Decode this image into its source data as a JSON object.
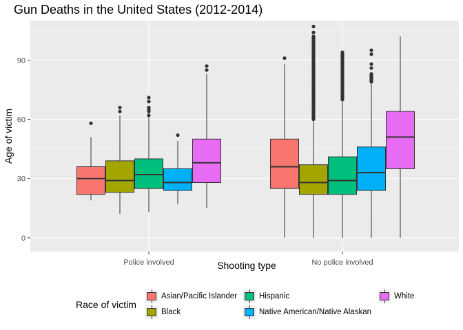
{
  "chart_data": {
    "type": "boxplot",
    "title": "Gun Deaths in the United States (2012-2014)",
    "xlabel": "Shooting type",
    "ylabel": "Age of victim",
    "ylim": [
      -7,
      110
    ],
    "yticks": [
      0,
      30,
      60,
      90
    ],
    "categories": [
      "Police involved",
      "No police involved"
    ],
    "legend": {
      "title": "Race of victim",
      "position": "bottom"
    },
    "series": [
      {
        "name": "Asian/Pacific Islander",
        "color": "#F8766D",
        "boxes": [
          {
            "category": "Police involved",
            "min": 19,
            "q1": 22,
            "median": 30,
            "q3": 36,
            "max": 51,
            "outliers": [
              58
            ]
          },
          {
            "category": "No police involved",
            "min": 0,
            "q1": 25,
            "median": 36,
            "q3": 50,
            "max": 88,
            "outliers": [
              91
            ]
          }
        ]
      },
      {
        "name": "Black",
        "color": "#A3A500",
        "boxes": [
          {
            "category": "Police involved",
            "min": 12,
            "q1": 23,
            "median": 29,
            "q3": 39,
            "max": 62,
            "outliers": [
              64,
              66
            ]
          },
          {
            "category": "No police involved",
            "min": 0,
            "q1": 22,
            "median": 28,
            "q3": 37,
            "max": 59,
            "outliers_range": [
              60,
              102
            ],
            "outliers": [
              104,
              107
            ]
          }
        ]
      },
      {
        "name": "Hispanic",
        "color": "#00BF7D",
        "boxes": [
          {
            "category": "Police involved",
            "min": 13,
            "q1": 25,
            "median": 32,
            "q3": 40,
            "max": 61,
            "outliers": [
              62,
              64,
              65,
              66,
              69,
              71
            ]
          },
          {
            "category": "No police involved",
            "min": 0,
            "q1": 22,
            "median": 29,
            "q3": 41,
            "max": 69,
            "outliers_range": [
              70,
              94
            ]
          }
        ]
      },
      {
        "name": "Native American/Native Alaskan",
        "color": "#00B0F6",
        "boxes": [
          {
            "category": "Police involved",
            "min": 17,
            "q1": 24,
            "median": 28,
            "q3": 35,
            "max": 49,
            "outliers": [
              52
            ]
          },
          {
            "category": "No police involved",
            "min": 0,
            "q1": 24,
            "median": 33,
            "q3": 46,
            "max": 78,
            "outliers_range": [
              79,
              83
            ],
            "outliers": [
              86,
              88,
              93,
              95
            ]
          }
        ]
      },
      {
        "name": "White",
        "color": "#E76BF3",
        "boxes": [
          {
            "category": "Police involved",
            "min": 15,
            "q1": 28,
            "median": 38,
            "q3": 50,
            "max": 83,
            "outliers": [
              85,
              87
            ]
          },
          {
            "category": "No police involved",
            "min": 0,
            "q1": 35,
            "median": 51,
            "q3": 64,
            "max": 102,
            "outliers": []
          }
        ]
      }
    ]
  }
}
